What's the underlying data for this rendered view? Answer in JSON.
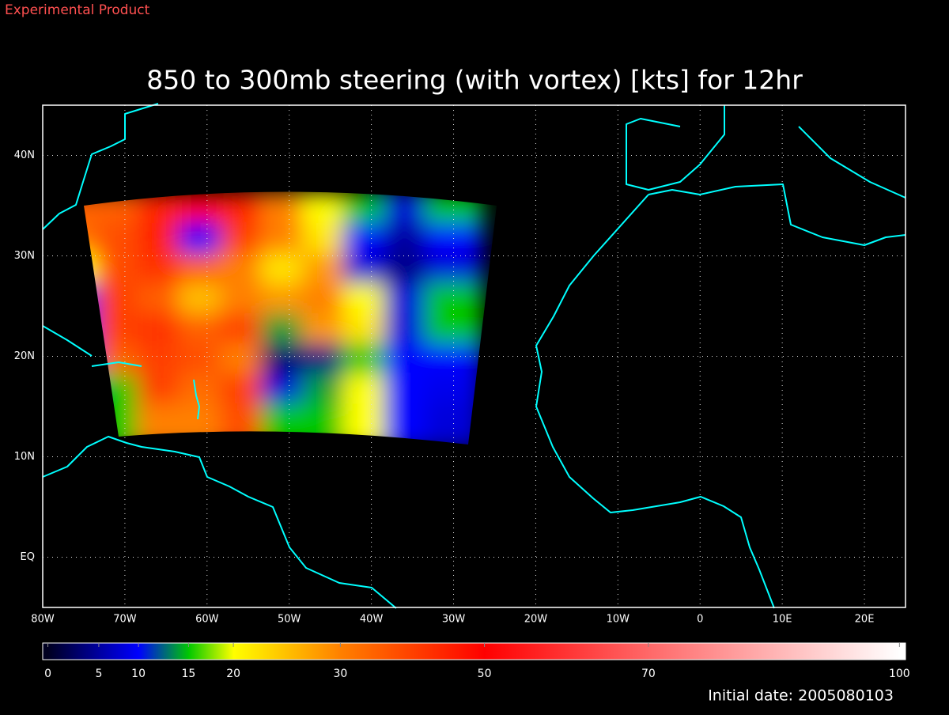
{
  "header": {
    "label": "Experimental Product"
  },
  "chart_data": {
    "type": "heatmap",
    "title": "850 to 300mb steering (with vortex) [kts] for 12hr",
    "x": [
      -75,
      -70,
      -65,
      -60,
      -55,
      -50,
      -45,
      -40,
      -35,
      -30
    ],
    "y": [
      34,
      31,
      28,
      25,
      22,
      19,
      16,
      13
    ],
    "values": [
      [
        35,
        35,
        45,
        50,
        45,
        30,
        20,
        15,
        8,
        15
      ],
      [
        32,
        38,
        45,
        10,
        40,
        30,
        22,
        10,
        5,
        10
      ],
      [
        20,
        38,
        42,
        35,
        30,
        22,
        28,
        8,
        4,
        8
      ],
      [
        10,
        40,
        35,
        25,
        30,
        28,
        30,
        20,
        8,
        15
      ],
      [
        10,
        40,
        42,
        35,
        40,
        14,
        28,
        22,
        8,
        15
      ],
      [
        10,
        35,
        40,
        38,
        30,
        3,
        4,
        15,
        10,
        10
      ],
      [
        null,
        15,
        40,
        33,
        40,
        8,
        14,
        20,
        10,
        9
      ],
      [
        null,
        15,
        30,
        30,
        38,
        15,
        15,
        20,
        10,
        8
      ]
    ],
    "xlim": [
      -80,
      25
    ],
    "ylim": [
      -5,
      45
    ],
    "xticks": [
      {
        "value": -80,
        "label": "80W"
      },
      {
        "value": -70,
        "label": "70W"
      },
      {
        "value": -60,
        "label": "60W"
      },
      {
        "value": -50,
        "label": "50W"
      },
      {
        "value": -40,
        "label": "40W"
      },
      {
        "value": -30,
        "label": "30W"
      },
      {
        "value": -20,
        "label": "20W"
      },
      {
        "value": -10,
        "label": "10W"
      },
      0,
      {
        "value": 10,
        "label": "10E"
      },
      {
        "value": 20,
        "label": "20E"
      }
    ],
    "yticks": [
      {
        "value": 0,
        "label": "EQ"
      },
      {
        "value": 10,
        "label": "10N"
      },
      {
        "value": 20,
        "label": "20N"
      },
      {
        "value": 30,
        "label": "30N"
      },
      {
        "value": 40,
        "label": "40N"
      }
    ],
    "grid": true,
    "colorbar": {
      "ticks": [
        0,
        5,
        10,
        15,
        20,
        30,
        50,
        70,
        100
      ],
      "colors": [
        "#000020",
        "#0000a0",
        "#0000ff",
        "#00c800",
        "#ffff00",
        "#ff8000",
        "#ff0000",
        "#ff6868",
        "#ffffff"
      ]
    }
  },
  "footer": {
    "initial_date": "Initial date: 2005080103"
  }
}
